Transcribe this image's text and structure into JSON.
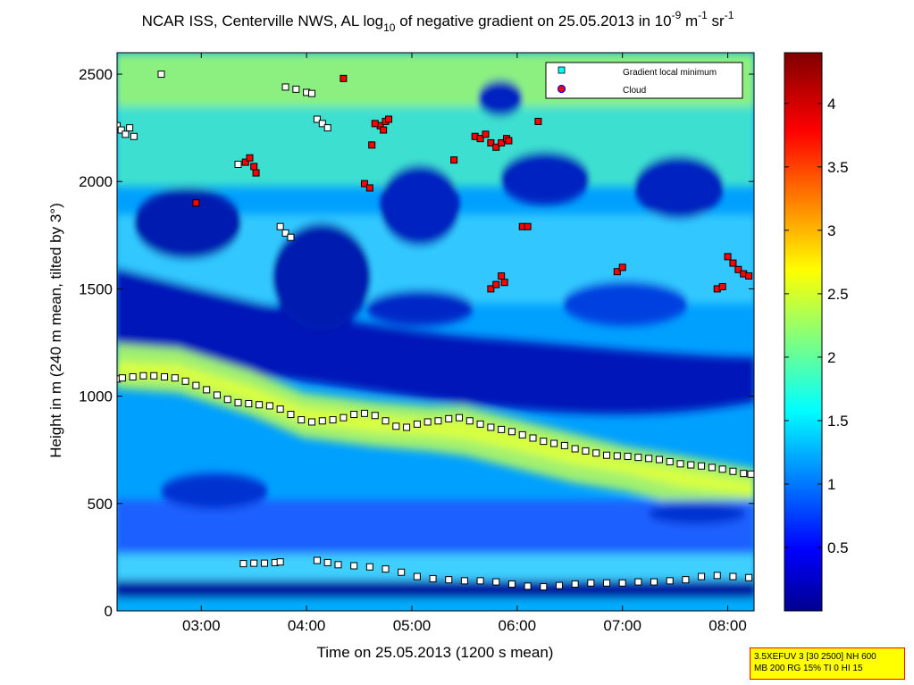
{
  "chart_data": {
    "type": "heatmap",
    "title": {
      "prefix": "NCAR ISS, Centerville NWS, AL log",
      "sub": "10",
      "mid": " of negative gradient on 25.05.2013 in 10",
      "sup1": "-9",
      "mid2": " m",
      "sup2": "-1",
      "mid3": " sr",
      "sup3": "-1"
    },
    "xlabel": "Time on 25.05.2013 (1200 s mean)",
    "ylabel": "Height in m (240 m mean, tilted by 3°)",
    "x_range_hours": [
      2.2,
      8.25
    ],
    "ylim": [
      0,
      2600
    ],
    "x_ticks": [
      {
        "value": 3,
        "label": "03:00"
      },
      {
        "value": 4,
        "label": "04:00"
      },
      {
        "value": 5,
        "label": "05:00"
      },
      {
        "value": 6,
        "label": "06:00"
      },
      {
        "value": 7,
        "label": "07:00"
      },
      {
        "value": 8,
        "label": "08:00"
      }
    ],
    "y_ticks": [
      {
        "value": 0,
        "label": "0"
      },
      {
        "value": 500,
        "label": "500"
      },
      {
        "value": 1000,
        "label": "1000"
      },
      {
        "value": 1500,
        "label": "1500"
      },
      {
        "value": 2000,
        "label": "2000"
      },
      {
        "value": 2500,
        "label": "2500"
      }
    ],
    "colorbar": {
      "range": [
        0,
        4.4
      ],
      "colormap": "jet",
      "ticks": [
        {
          "value": 0.5,
          "label": "0.5"
        },
        {
          "value": 1,
          "label": "1"
        },
        {
          "value": 1.5,
          "label": "1.5"
        },
        {
          "value": 2,
          "label": "2"
        },
        {
          "value": 2.5,
          "label": "2.5"
        },
        {
          "value": 3,
          "label": "3"
        },
        {
          "value": 3.5,
          "label": "3.5"
        },
        {
          "value": 4,
          "label": "4"
        }
      ]
    },
    "legend": {
      "position": "top-right",
      "entries": [
        {
          "label": "Gradient local minimum",
          "marker": "square",
          "color": "#00ffff"
        },
        {
          "label": "Cloud",
          "marker": "circle",
          "color": "#ff0000"
        }
      ]
    },
    "series": [
      {
        "name": "Gradient local minimum",
        "marker_fill": "#ffffff",
        "marker_edge": "#000000",
        "points": [
          [
            2.2,
            1080
          ],
          [
            2.25,
            1085
          ],
          [
            2.35,
            1090
          ],
          [
            2.45,
            1095
          ],
          [
            2.55,
            1095
          ],
          [
            2.65,
            1090
          ],
          [
            2.75,
            1085
          ],
          [
            2.85,
            1070
          ],
          [
            2.95,
            1050
          ],
          [
            3.05,
            1030
          ],
          [
            3.15,
            1005
          ],
          [
            3.25,
            985
          ],
          [
            3.35,
            970
          ],
          [
            3.45,
            965
          ],
          [
            3.55,
            960
          ],
          [
            3.65,
            955
          ],
          [
            3.75,
            940
          ],
          [
            3.85,
            915
          ],
          [
            3.95,
            890
          ],
          [
            4.05,
            880
          ],
          [
            4.15,
            885
          ],
          [
            4.25,
            890
          ],
          [
            4.35,
            900
          ],
          [
            4.45,
            915
          ],
          [
            4.55,
            920
          ],
          [
            4.65,
            910
          ],
          [
            4.75,
            885
          ],
          [
            4.85,
            860
          ],
          [
            4.95,
            855
          ],
          [
            5.05,
            870
          ],
          [
            5.15,
            880
          ],
          [
            5.25,
            885
          ],
          [
            5.35,
            895
          ],
          [
            5.45,
            900
          ],
          [
            5.55,
            885
          ],
          [
            5.65,
            870
          ],
          [
            5.75,
            855
          ],
          [
            5.85,
            845
          ],
          [
            5.95,
            835
          ],
          [
            6.05,
            820
          ],
          [
            6.15,
            805
          ],
          [
            6.25,
            790
          ],
          [
            6.35,
            780
          ],
          [
            6.45,
            770
          ],
          [
            6.55,
            755
          ],
          [
            6.65,
            745
          ],
          [
            6.75,
            735
          ],
          [
            6.85,
            725
          ],
          [
            6.95,
            722
          ],
          [
            7.05,
            720
          ],
          [
            7.15,
            715
          ],
          [
            7.25,
            710
          ],
          [
            7.35,
            705
          ],
          [
            7.45,
            695
          ],
          [
            7.55,
            685
          ],
          [
            7.65,
            680
          ],
          [
            7.75,
            675
          ],
          [
            7.85,
            668
          ],
          [
            7.95,
            660
          ],
          [
            8.05,
            650
          ],
          [
            8.15,
            640
          ],
          [
            8.22,
            637
          ],
          [
            3.4,
            220
          ],
          [
            3.5,
            222
          ],
          [
            3.6,
            222
          ],
          [
            3.7,
            225
          ],
          [
            3.75,
            228
          ],
          [
            4.1,
            235
          ],
          [
            4.2,
            225
          ],
          [
            4.3,
            215
          ],
          [
            4.45,
            210
          ],
          [
            4.6,
            205
          ],
          [
            4.75,
            195
          ],
          [
            4.9,
            180
          ],
          [
            5.05,
            160
          ],
          [
            5.2,
            150
          ],
          [
            5.35,
            145
          ],
          [
            5.5,
            140
          ],
          [
            5.65,
            140
          ],
          [
            5.8,
            135
          ],
          [
            5.95,
            125
          ],
          [
            6.1,
            115
          ],
          [
            6.25,
            112
          ],
          [
            6.4,
            118
          ],
          [
            6.55,
            125
          ],
          [
            6.7,
            130
          ],
          [
            6.85,
            130
          ],
          [
            7.0,
            130
          ],
          [
            7.15,
            135
          ],
          [
            7.3,
            135
          ],
          [
            7.45,
            140
          ],
          [
            7.6,
            145
          ],
          [
            7.75,
            160
          ],
          [
            7.9,
            165
          ],
          [
            8.05,
            160
          ],
          [
            8.2,
            155
          ],
          [
            2.2,
            2260
          ],
          [
            2.24,
            2240
          ],
          [
            2.28,
            2220
          ],
          [
            2.32,
            2250
          ],
          [
            2.36,
            2210
          ],
          [
            2.62,
            2500
          ],
          [
            3.35,
            2080
          ],
          [
            3.75,
            1790
          ],
          [
            3.8,
            1760
          ],
          [
            3.85,
            1740
          ],
          [
            3.8,
            2440
          ],
          [
            3.9,
            2430
          ],
          [
            4.0,
            2415
          ],
          [
            4.05,
            2410
          ],
          [
            4.1,
            2290
          ],
          [
            4.15,
            2270
          ],
          [
            4.2,
            2250
          ]
        ]
      },
      {
        "name": "Cloud",
        "marker_fill": "#ff0000",
        "marker_edge": "#000000",
        "points": [
          [
            3.42,
            2090
          ],
          [
            3.46,
            2110
          ],
          [
            3.5,
            2070
          ],
          [
            3.52,
            2040
          ],
          [
            4.35,
            2480
          ],
          [
            4.55,
            1990
          ],
          [
            4.6,
            1970
          ],
          [
            4.62,
            2170
          ],
          [
            4.7,
            2260
          ],
          [
            4.75,
            2280
          ],
          [
            4.73,
            2240
          ],
          [
            4.78,
            2290
          ],
          [
            5.4,
            2100
          ],
          [
            5.6,
            2210
          ],
          [
            5.65,
            2200
          ],
          [
            5.7,
            2220
          ],
          [
            5.75,
            2180
          ],
          [
            5.8,
            2160
          ],
          [
            5.85,
            2180
          ],
          [
            5.9,
            2200
          ],
          [
            5.75,
            1500
          ],
          [
            5.8,
            1520
          ],
          [
            5.85,
            1560
          ],
          [
            5.88,
            1530
          ],
          [
            5.92,
            2190
          ],
          [
            6.05,
            1790
          ],
          [
            6.1,
            1790
          ],
          [
            6.95,
            1580
          ],
          [
            7.0,
            1600
          ],
          [
            7.9,
            1500
          ],
          [
            7.95,
            1510
          ],
          [
            8.0,
            1650
          ],
          [
            8.05,
            1620
          ],
          [
            8.1,
            1590
          ],
          [
            8.15,
            1570
          ],
          [
            8.2,
            1560
          ],
          [
            4.65,
            2270
          ],
          [
            2.95,
            1900
          ],
          [
            6.2,
            2280
          ]
        ]
      }
    ],
    "annotation": {
      "line1": "3.5XEFUV 3 [30 2500] NH 600",
      "line2": "MB 200 RG 15% TI 0 HI 15"
    }
  }
}
